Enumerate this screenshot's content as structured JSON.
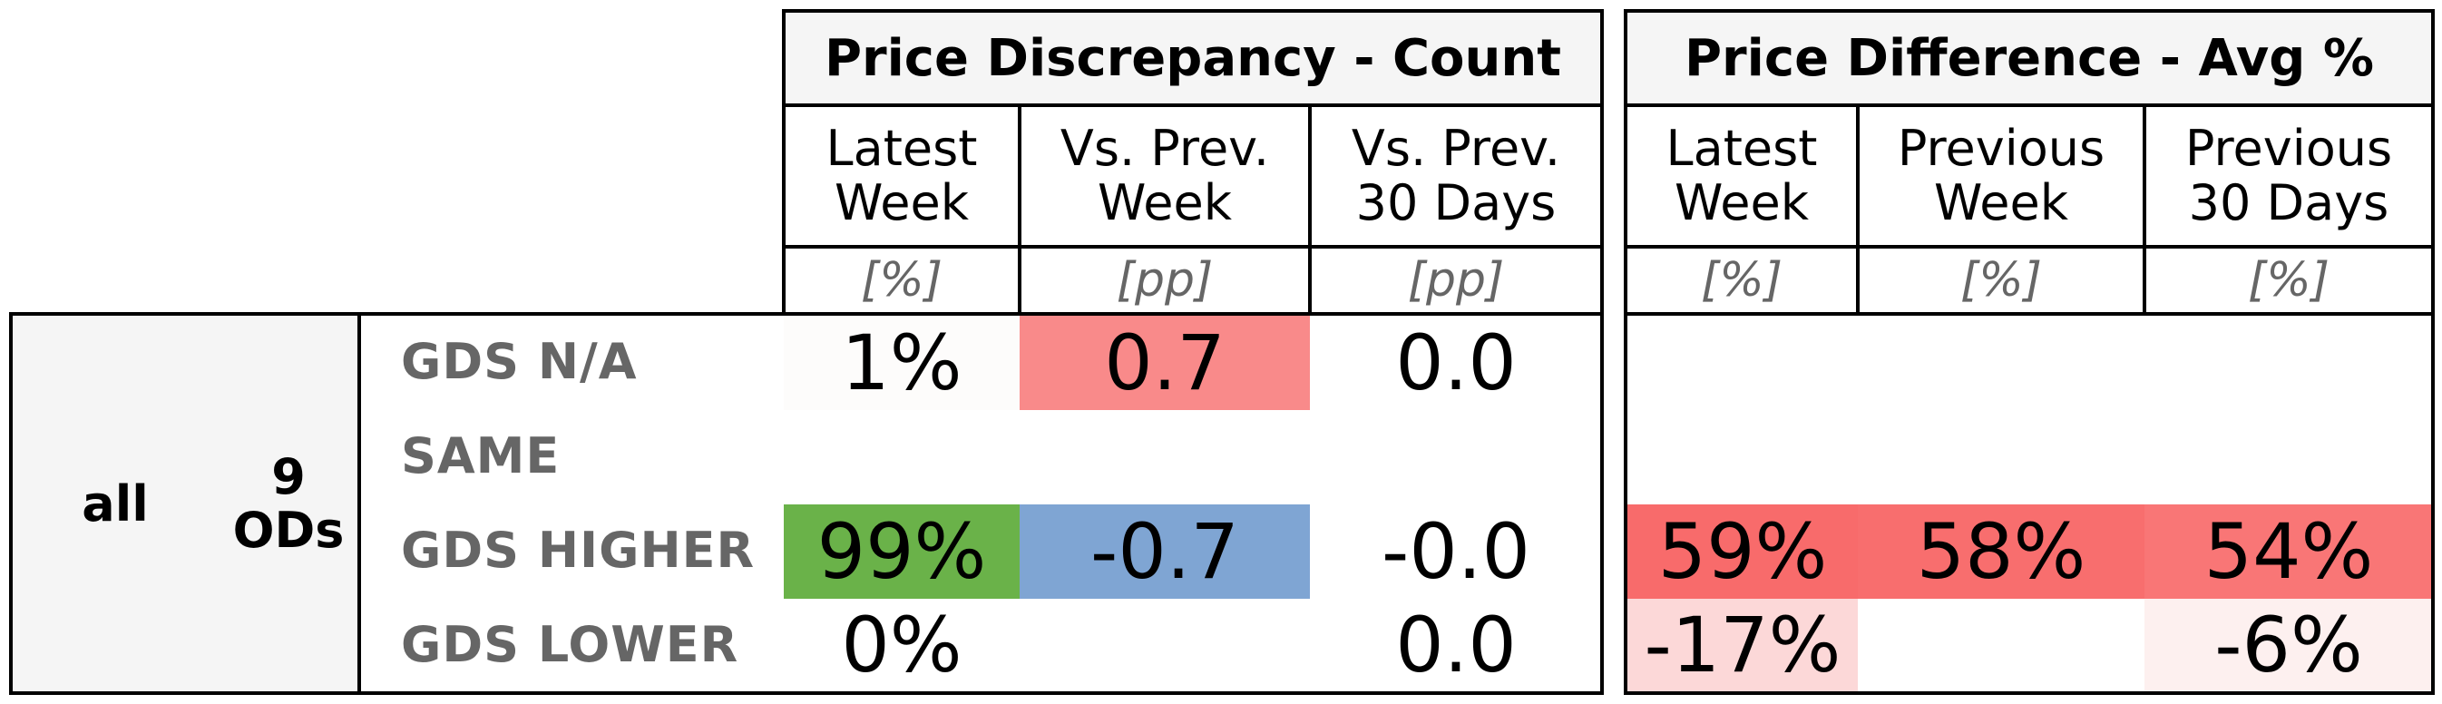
{
  "chart_data": {
    "type": "table",
    "colors": {
      "red_strong": "#f86b6b",
      "red_mid": "#f98a8a",
      "red_light": "#fcd8d8",
      "red_faint": "#fdf0ef",
      "green": "#6ab249",
      "blue": "#7fa5d3",
      "header_bg": "#f5f5f5"
    },
    "groups": [
      {
        "title": "Price Discrepancy - Count",
        "columns": [
          {
            "label_line1": "Latest",
            "label_line2": "Week",
            "unit": "[%]"
          },
          {
            "label_line1": "Vs. Prev.",
            "label_line2": "Week",
            "unit": "[pp]"
          },
          {
            "label_line1": "Vs. Prev.",
            "label_line2": "30 Days",
            "unit": "[pp]"
          }
        ]
      },
      {
        "title": "Price Difference - Avg %",
        "columns": [
          {
            "label_line1": "Latest",
            "label_line2": "Week",
            "unit": "[%]"
          },
          {
            "label_line1": "Previous",
            "label_line2": "Week",
            "unit": "[%]"
          },
          {
            "label_line1": "Previous",
            "label_line2": "30 Days",
            "unit": "[%]"
          }
        ]
      }
    ],
    "row_group": {
      "level1": "all",
      "level2_line1": "9",
      "level2_line2": "ODs"
    },
    "rows": [
      {
        "label": "GDS N/A",
        "cells": [
          {
            "text": "1%",
            "color": "#fdfcfb"
          },
          {
            "text": "0.7",
            "color": "#f98a8a"
          },
          {
            "text": "0.0",
            "color": ""
          },
          {
            "text": "",
            "color": ""
          },
          {
            "text": "",
            "color": ""
          },
          {
            "text": "",
            "color": ""
          }
        ]
      },
      {
        "label": "SAME",
        "cells": [
          {
            "text": "",
            "color": ""
          },
          {
            "text": "",
            "color": ""
          },
          {
            "text": "",
            "color": ""
          },
          {
            "text": "",
            "color": ""
          },
          {
            "text": "",
            "color": ""
          },
          {
            "text": "",
            "color": ""
          }
        ]
      },
      {
        "label": "GDS HIGHER",
        "cells": [
          {
            "text": "99%",
            "color": "#6ab249"
          },
          {
            "text": "-0.7",
            "color": "#7fa5d3"
          },
          {
            "text": "-0.0",
            "color": ""
          },
          {
            "text": "59%",
            "color": "#f86b6b"
          },
          {
            "text": "58%",
            "color": "#f86e6e"
          },
          {
            "text": "54%",
            "color": "#f97676"
          }
        ]
      },
      {
        "label": "GDS LOWER",
        "cells": [
          {
            "text": "0%",
            "color": ""
          },
          {
            "text": "",
            "color": ""
          },
          {
            "text": "0.0",
            "color": ""
          },
          {
            "text": "-17%",
            "color": "#fcd8d8"
          },
          {
            "text": "",
            "color": ""
          },
          {
            "text": "-6%",
            "color": "#fdf0ef"
          }
        ]
      }
    ]
  }
}
